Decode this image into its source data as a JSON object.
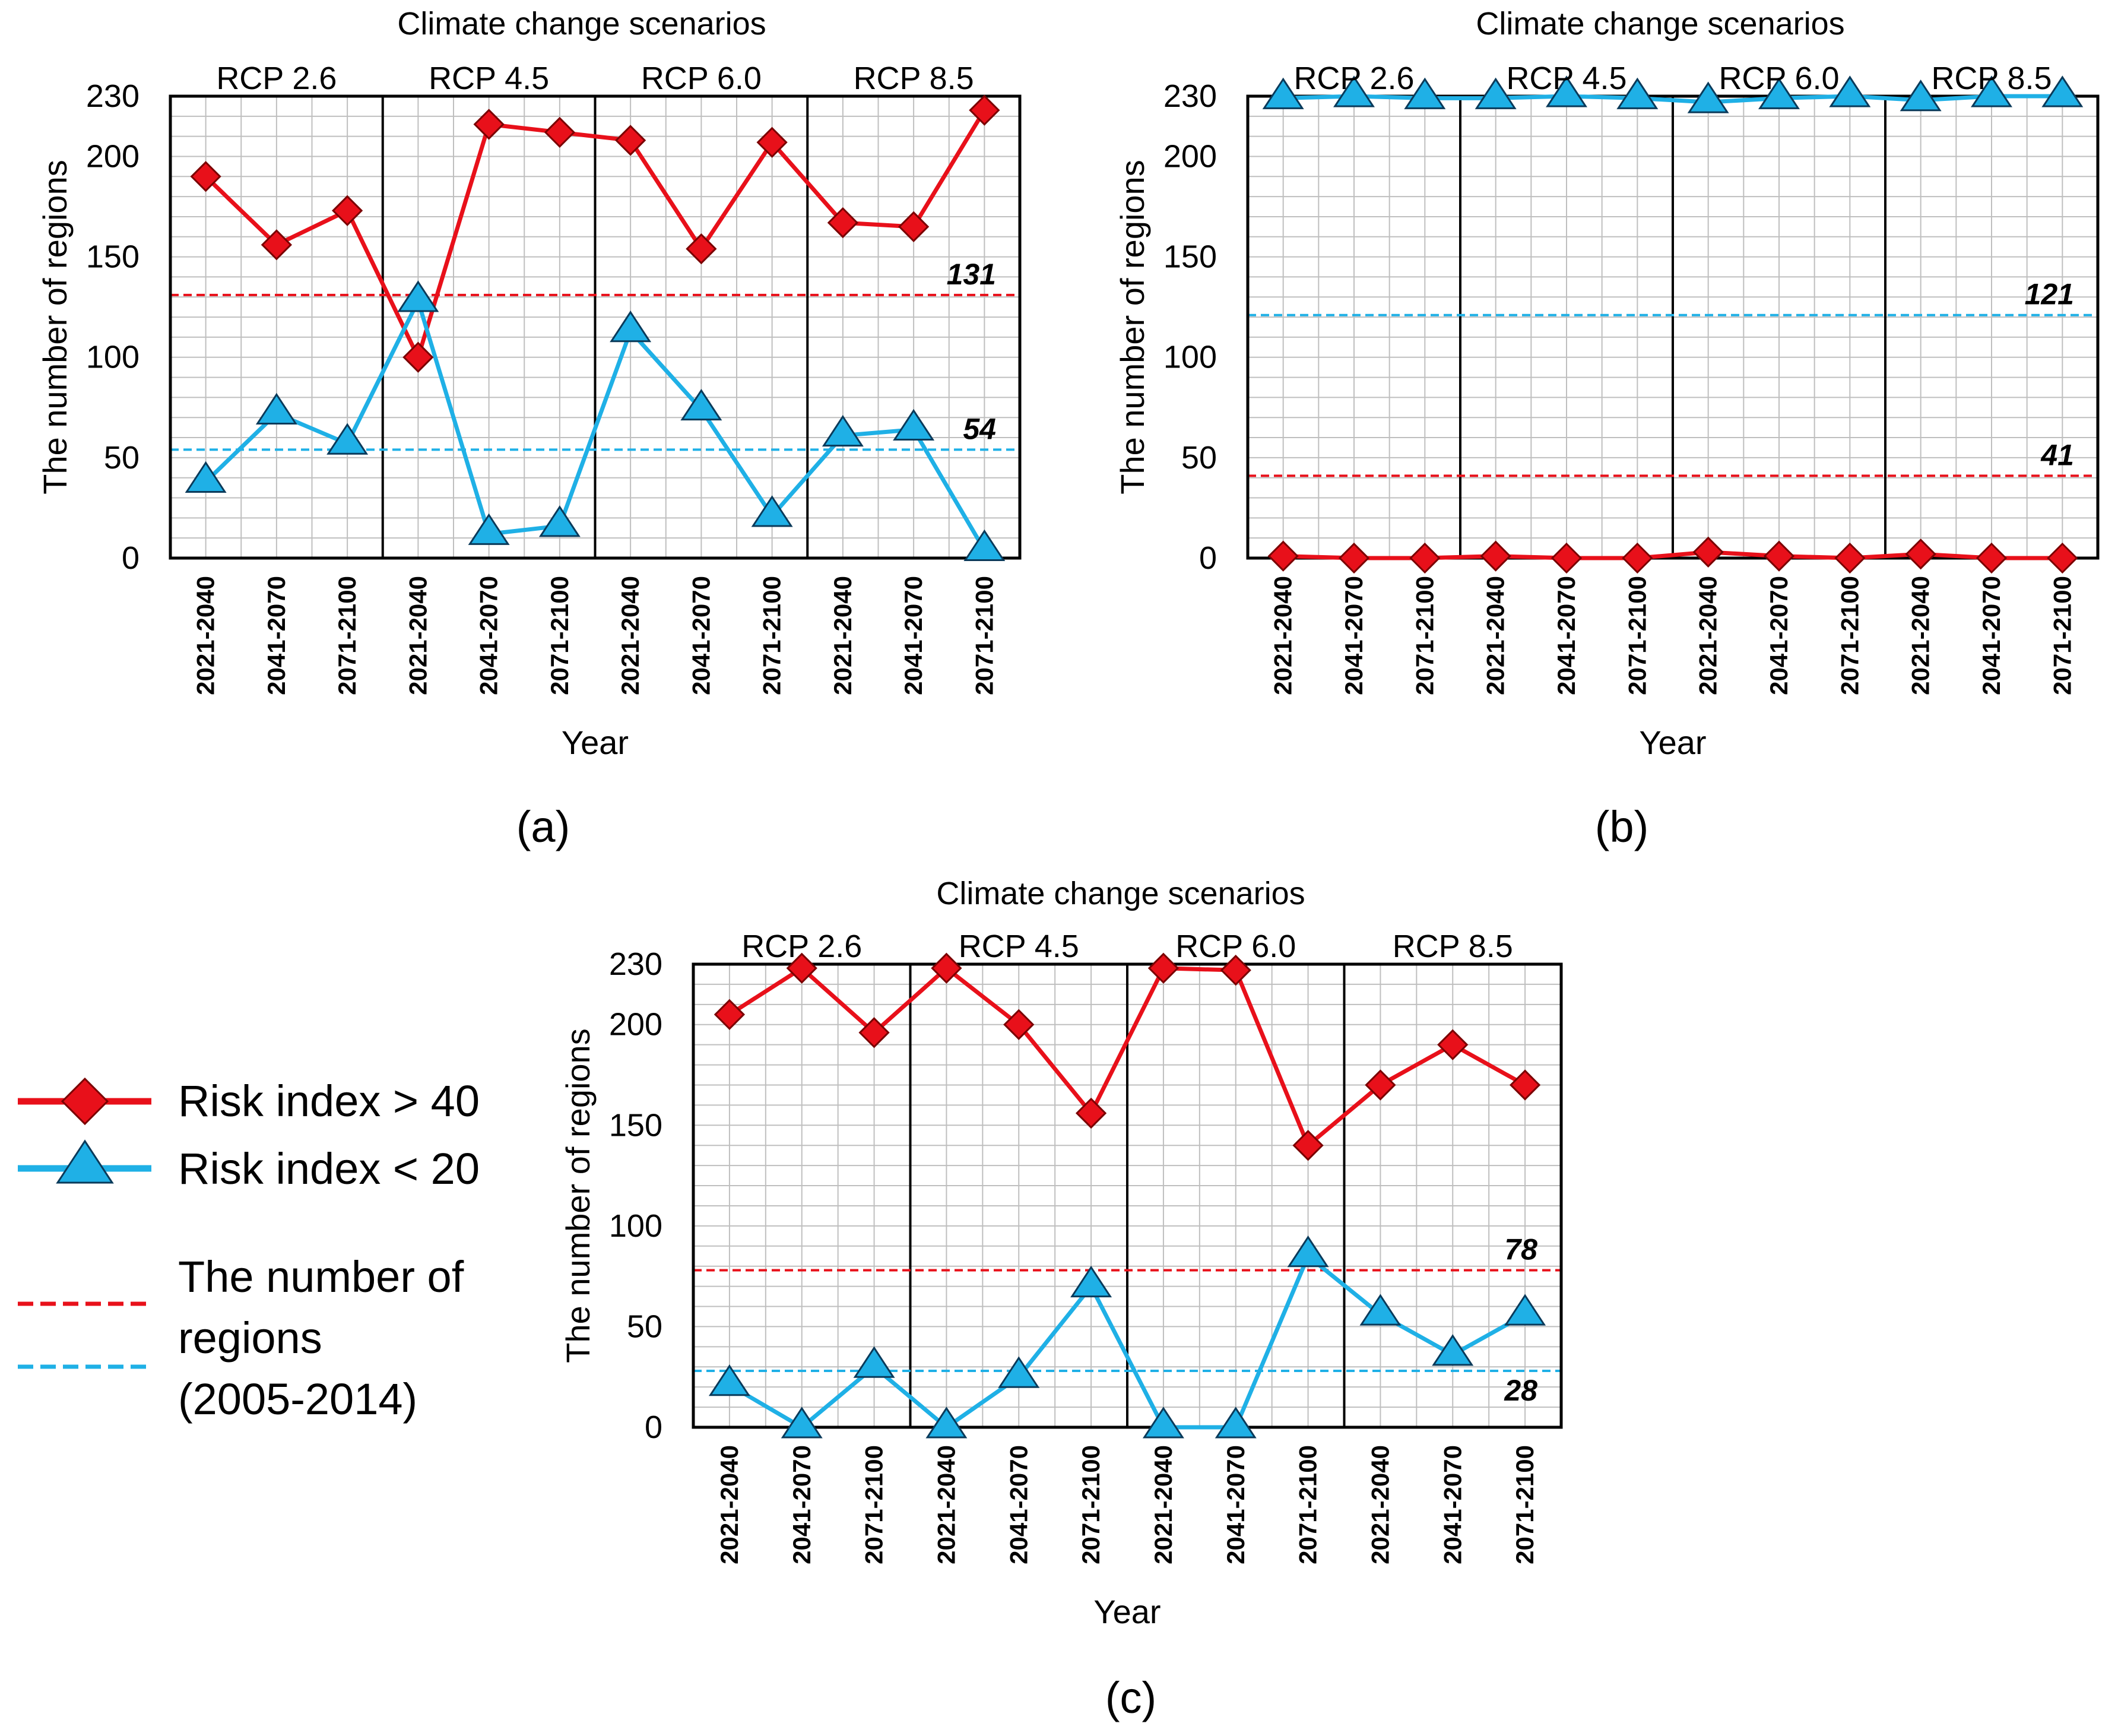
{
  "colors": {
    "red": "#e8101a",
    "blue": "#1fb0e6",
    "grid": "#bfbfbf",
    "frame": "#000000"
  },
  "chart_data": [
    {
      "type": "line",
      "panel_label": "(a)",
      "title": "Climate change scenarios",
      "xlabel": "Year",
      "ylabel": "The number of regions",
      "ylim": [
        0,
        230
      ],
      "yticks": [
        0,
        50,
        100,
        150,
        200,
        230
      ],
      "groups": [
        "RCP 2.6",
        "RCP 4.5",
        "RCP 6.0",
        "RCP 8.5"
      ],
      "categories": [
        "2021-2040",
        "2041-2070",
        "2071-2100",
        "2021-2040",
        "2041-2070",
        "2071-2100",
        "2021-2040",
        "2041-2070",
        "2071-2100",
        "2021-2040",
        "2041-2070",
        "2071-2100"
      ],
      "series": [
        {
          "name": "Risk index > 40",
          "color": "#e8101a",
          "marker": "diamond",
          "values": [
            190,
            156,
            173,
            100,
            216,
            212,
            208,
            154,
            207,
            167,
            165,
            223
          ]
        },
        {
          "name": "Risk index < 20",
          "color": "#1fb0e6",
          "marker": "triangle",
          "values": [
            38,
            72,
            57,
            128,
            12,
            16,
            113,
            74,
            21,
            61,
            64,
            4
          ]
        }
      ],
      "reference_lines": [
        {
          "value": 131,
          "label": "131",
          "color": "#e8101a"
        },
        {
          "value": 54,
          "label": "54",
          "color": "#1fb0e6"
        }
      ],
      "grid": true
    },
    {
      "type": "line",
      "panel_label": "(b)",
      "title": "Climate change scenarios",
      "xlabel": "Year",
      "ylabel": "The number of regions",
      "ylim": [
        0,
        230
      ],
      "yticks": [
        0,
        50,
        100,
        150,
        200,
        230
      ],
      "groups": [
        "RCP 2.6",
        "RCP 4.5",
        "RCP 6.0",
        "RCP 8.5"
      ],
      "categories": [
        "2021-2040",
        "2041-2070",
        "2071-2100",
        "2021-2040",
        "2041-2070",
        "2071-2100",
        "2021-2040",
        "2041-2070",
        "2071-2100",
        "2021-2040",
        "2041-2070",
        "2071-2100"
      ],
      "series": [
        {
          "name": "Risk index > 40",
          "color": "#e8101a",
          "marker": "diamond",
          "values": [
            1,
            0,
            0,
            1,
            0,
            0,
            3,
            1,
            0,
            2,
            0,
            0
          ]
        },
        {
          "name": "Risk index < 20",
          "color": "#1fb0e6",
          "marker": "triangle",
          "values": [
            229,
            230,
            229,
            229,
            230,
            229,
            227,
            229,
            230,
            228,
            230,
            230
          ]
        }
      ],
      "reference_lines": [
        {
          "value": 121,
          "label": "121",
          "color": "#1fb0e6"
        },
        {
          "value": 41,
          "label": "41",
          "color": "#e8101a"
        }
      ],
      "grid": true
    },
    {
      "type": "line",
      "panel_label": "(c)",
      "title": "Climate change scenarios",
      "xlabel": "Year",
      "ylabel": "The number of regions",
      "ylim": [
        0,
        230
      ],
      "yticks": [
        0,
        50,
        100,
        150,
        200,
        230
      ],
      "groups": [
        "RCP 2.6",
        "RCP 4.5",
        "RCP 6.0",
        "RCP 8.5"
      ],
      "categories": [
        "2021-2040",
        "2041-2070",
        "2071-2100",
        "2021-2040",
        "2041-2070",
        "2071-2100",
        "2021-2040",
        "2041-2070",
        "2071-2100",
        "2021-2040",
        "2041-2070",
        "2071-2100"
      ],
      "series": [
        {
          "name": "Risk index > 40",
          "color": "#e8101a",
          "marker": "diamond",
          "values": [
            205,
            228,
            196,
            228,
            200,
            156,
            228,
            227,
            140,
            170,
            190,
            170
          ]
        },
        {
          "name": "Risk index < 20",
          "color": "#1fb0e6",
          "marker": "triangle",
          "values": [
            21,
            0,
            30,
            0,
            25,
            70,
            0,
            0,
            85,
            56,
            36,
            56
          ]
        }
      ],
      "reference_lines": [
        {
          "value": 78,
          "label": "78",
          "color": "#e8101a"
        },
        {
          "value": 28,
          "label": "28",
          "color": "#1fb0e6"
        }
      ],
      "grid": true
    }
  ],
  "legend": {
    "placement": "bottom-left",
    "items": [
      {
        "label": "Risk index > 40",
        "color": "#e8101a",
        "kind": "series",
        "marker": "diamond"
      },
      {
        "label": "Risk index < 20",
        "color": "#1fb0e6",
        "kind": "series",
        "marker": "triangle"
      },
      {
        "label_lines": [
          "The number of",
          "regions",
          "(2005-2014)"
        ],
        "kind": "reference"
      }
    ]
  }
}
